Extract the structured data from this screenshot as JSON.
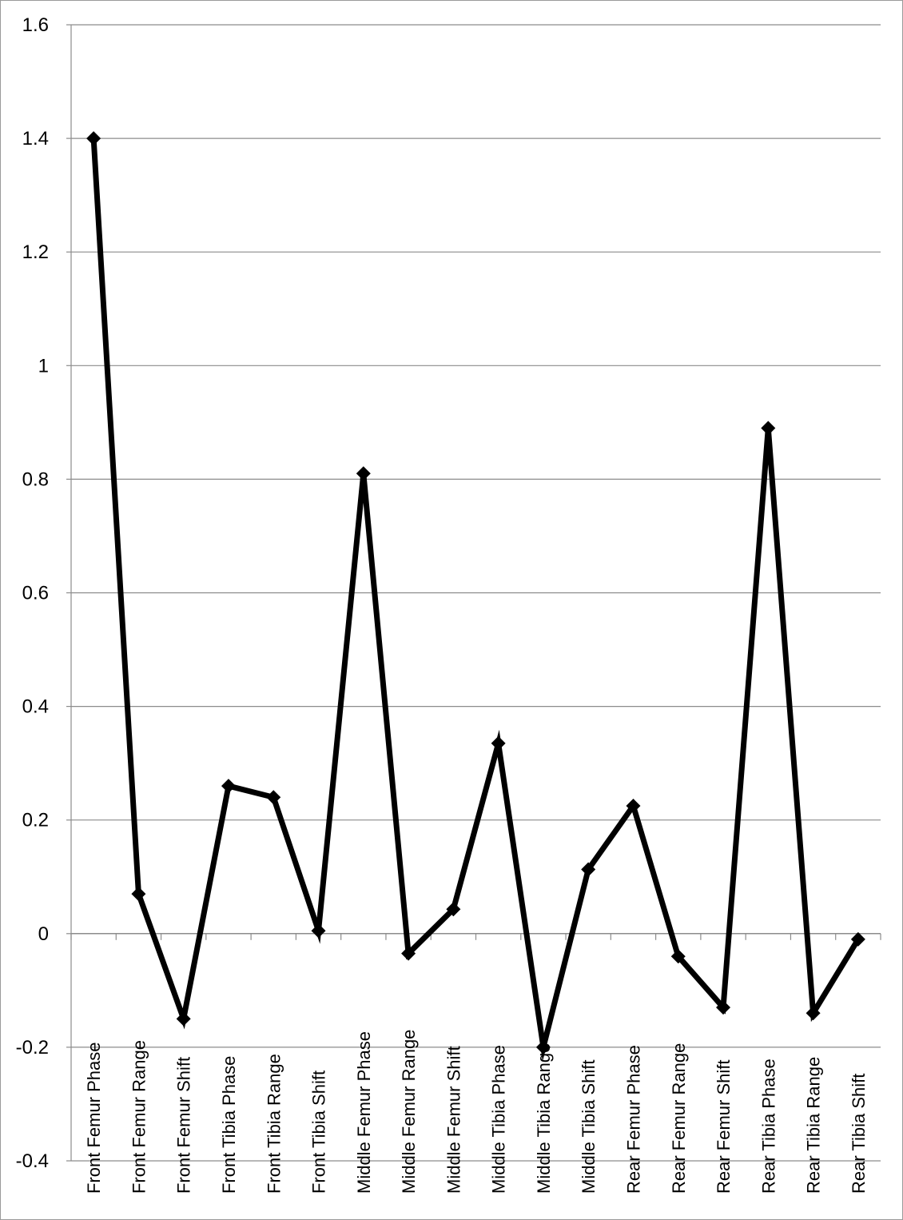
{
  "chart_data": {
    "type": "line",
    "title": "",
    "xlabel": "",
    "ylabel": "",
    "ylim": [
      -0.4,
      1.6
    ],
    "yticks": [
      1.6,
      1.4,
      1.2,
      1,
      0.8,
      0.6,
      0.4,
      0.2,
      0,
      -0.2,
      -0.4
    ],
    "grid": true,
    "legend": "none",
    "categories": [
      "Front Femur Phase",
      "Front Femur Range",
      "Front Femur Shift",
      "Front Tibia Phase",
      "Front Tibia Range",
      "Front Tibia Shift",
      "Middle Femur Phase",
      "Middle Femur Range",
      "Middle Femur Shift",
      "Middle Tibia Phase",
      "Middle Tibia Range",
      "Middle Tibia Shift",
      "Rear Femur Phase",
      "Rear Femur Range",
      "Rear Femur Shift",
      "Rear Tibia Phase",
      "Rear Tibia Range",
      "Rear Tibia Shift"
    ],
    "series": [
      {
        "values": [
          1.4,
          0.07,
          -0.15,
          0.26,
          0.24,
          0.005,
          0.81,
          -0.035,
          0.043,
          0.335,
          -0.2,
          0.113,
          0.225,
          -0.04,
          -0.13,
          0.89,
          -0.14,
          -0.01
        ],
        "color": "#000000",
        "marker": "diamond"
      }
    ],
    "colors": {
      "line": "#000000",
      "grid": "#8c8c8c",
      "axis": "#8c8c8c"
    }
  }
}
